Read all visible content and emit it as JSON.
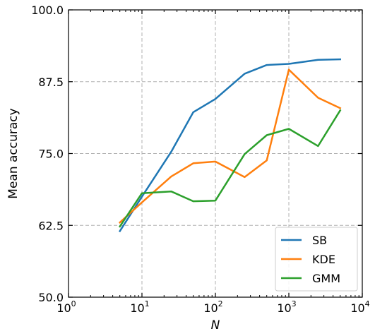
{
  "chart_data": {
    "type": "line",
    "title": "",
    "xlabel": "N",
    "ylabel": "Mean accuracy",
    "xscale": "log",
    "xlim": [
      1,
      10000
    ],
    "ylim": [
      50,
      100
    ],
    "x_ticks": [
      1,
      10,
      100,
      1000,
      10000
    ],
    "y_ticks": [
      50.0,
      62.5,
      75.0,
      87.5,
      100.0
    ],
    "y_tick_labels": [
      "50.0",
      "62.5",
      "75.0",
      "87.5",
      "100.0"
    ],
    "grid": true,
    "legend_position": "bottom-right",
    "series": [
      {
        "name": "SB",
        "color": "#1f77b4",
        "x": [
          5,
          10,
          25,
          50,
          100,
          250,
          500,
          1000,
          2500,
          5000
        ],
        "y": [
          61.5,
          67.5,
          75.3,
          82.2,
          84.5,
          88.9,
          90.4,
          90.6,
          91.3,
          91.4
        ]
      },
      {
        "name": "KDE",
        "color": "#ff7f0e",
        "x": [
          5,
          10,
          25,
          50,
          100,
          250,
          500,
          1000,
          2500,
          5000
        ],
        "y": [
          63.0,
          66.5,
          71.0,
          73.3,
          73.6,
          70.9,
          73.8,
          89.6,
          84.7,
          82.9
        ]
      },
      {
        "name": "GMM",
        "color": "#2ca02c",
        "x": [
          5,
          10,
          25,
          50,
          100,
          250,
          500,
          1000,
          2500,
          5000
        ],
        "y": [
          62.3,
          68.1,
          68.4,
          66.7,
          66.8,
          74.9,
          78.2,
          79.3,
          76.3,
          82.5
        ]
      }
    ]
  }
}
